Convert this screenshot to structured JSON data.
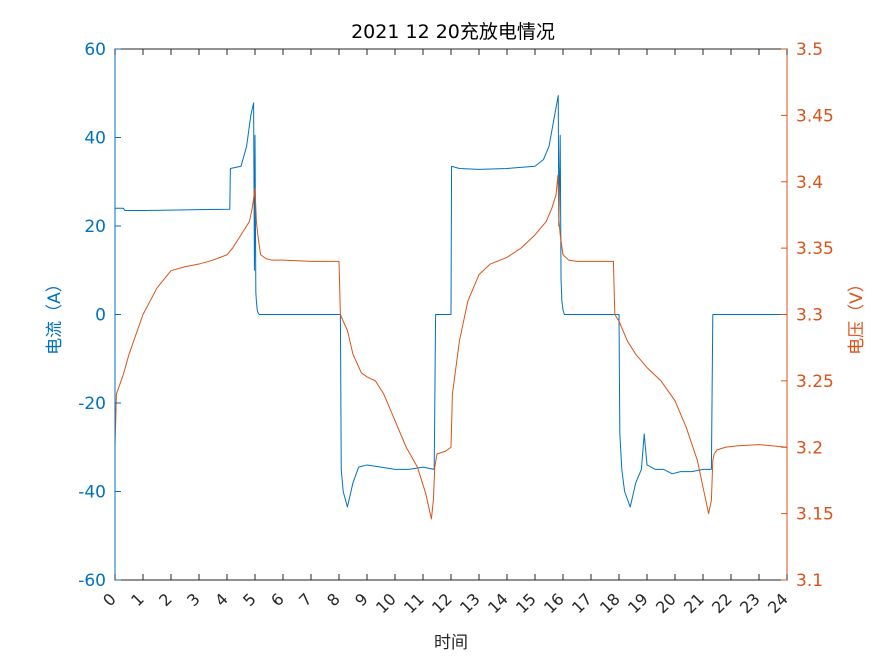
{
  "chart_data": {
    "type": "line",
    "title": "2021  12  20充放电情况",
    "xlabel": "时间",
    "ylabel_left": "电流（A）",
    "ylabel_right": "电压（V）",
    "xlim": [
      0,
      24
    ],
    "ylim_left": [
      -60,
      60
    ],
    "ylim_right": [
      3.1,
      3.5
    ],
    "x_ticks": [
      "0",
      "1",
      "2",
      "3",
      "4",
      "5",
      "6",
      "7",
      "8",
      "9",
      "10",
      "11",
      "12",
      "13",
      "14",
      "15",
      "16",
      "17",
      "18",
      "19",
      "20",
      "21",
      "22",
      "23",
      "24"
    ],
    "yleft_ticks": [
      "60",
      "40",
      "20",
      "0",
      "-20",
      "-40",
      "-60"
    ],
    "yright_ticks": [
      "3.5",
      "3.45",
      "3.4",
      "3.35",
      "3.3",
      "3.25",
      "3.2",
      "3.15",
      "3.1"
    ],
    "grid": false,
    "colors": {
      "current": "#0072BD",
      "voltage": "#D95319",
      "axis": "#262626"
    },
    "series": [
      {
        "axis": "left",
        "color": "#0072BD",
        "x": [
          0,
          0.3,
          0.35,
          1,
          2,
          3,
          4.1,
          4.12,
          4.5,
          4.7,
          4.85,
          4.95,
          4.98,
          5.0,
          5.03,
          5.05,
          5.08,
          5.1,
          5.15,
          5.3,
          7,
          8.05,
          8.08,
          8.15,
          8.3,
          8.5,
          8.7,
          9.0,
          9.5,
          10.0,
          10.5,
          11.0,
          11.4,
          11.45,
          11.5,
          12.0,
          12.02,
          12.3,
          13,
          14,
          15,
          15.3,
          15.5,
          15.7,
          15.83,
          15.85,
          15.9,
          15.93,
          15.96,
          16.0,
          16.05,
          16.2,
          17.5,
          18.0,
          18.03,
          18.1,
          18.2,
          18.4,
          18.6,
          18.8,
          18.9,
          19.0,
          19.3,
          19.6,
          19.9,
          20.2,
          20.6,
          21.0,
          21.3,
          21.35,
          21.4,
          21.5,
          24
        ],
        "y": [
          24,
          24,
          23.5,
          23.5,
          23.6,
          23.7,
          23.8,
          33.0,
          33.5,
          38,
          45,
          47.8,
          10,
          40.5,
          5,
          3,
          1,
          0.5,
          0,
          0,
          0,
          0,
          -35,
          -40,
          -43.5,
          -38,
          -34.5,
          -34,
          -34.5,
          -35,
          -35,
          -34.5,
          -35,
          0,
          0,
          0,
          33.5,
          33,
          32.8,
          33,
          33.5,
          35,
          38,
          45,
          49.5,
          20,
          40.5,
          8,
          3,
          1,
          0,
          0,
          0,
          0,
          -27,
          -35,
          -40,
          -43.5,
          -38,
          -35,
          -27,
          -34,
          -35,
          -35,
          -36,
          -35.5,
          -35.5,
          -35,
          -35,
          0,
          0,
          0,
          0
        ]
      },
      {
        "axis": "right",
        "color": "#D95319",
        "x": [
          0,
          0.05,
          0.3,
          0.5,
          1,
          1.5,
          2,
          2.5,
          3,
          3.5,
          4,
          4.2,
          4.5,
          4.8,
          4.9,
          5.0,
          5.05,
          5.1,
          5.2,
          5.4,
          5.6,
          6,
          7,
          7.6,
          7.7,
          8.0,
          8.05,
          8.15,
          8.3,
          8.5,
          8.8,
          9.0,
          9.3,
          9.6,
          10.0,
          10.4,
          10.8,
          11.1,
          11.3,
          11.37,
          11.42,
          11.5,
          11.8,
          12.0,
          12.05,
          12.3,
          12.6,
          13.0,
          13.4,
          14.0,
          14.5,
          15.0,
          15.4,
          15.6,
          15.75,
          15.82,
          15.86,
          15.9,
          16.0,
          16.2,
          16.5,
          16.8,
          17.5,
          17.8,
          17.85,
          18.0,
          18.1,
          18.3,
          18.6,
          18.8,
          19.0,
          19.5,
          20.0,
          20.4,
          20.8,
          21.0,
          21.2,
          21.3,
          21.35,
          21.4,
          21.5,
          21.8,
          22.2,
          23.0,
          24
        ],
        "y": [
          3.2,
          3.24,
          3.255,
          3.27,
          3.3,
          3.32,
          3.333,
          3.336,
          3.338,
          3.341,
          3.345,
          3.35,
          3.36,
          3.37,
          3.38,
          3.395,
          3.37,
          3.36,
          3.345,
          3.342,
          3.341,
          3.341,
          3.34,
          3.34,
          3.34,
          3.34,
          3.3,
          3.295,
          3.288,
          3.27,
          3.256,
          3.253,
          3.25,
          3.24,
          3.22,
          3.2,
          3.185,
          3.165,
          3.146,
          3.16,
          3.185,
          3.195,
          3.197,
          3.2,
          3.24,
          3.28,
          3.31,
          3.33,
          3.338,
          3.343,
          3.35,
          3.36,
          3.37,
          3.38,
          3.39,
          3.405,
          3.37,
          3.36,
          3.345,
          3.341,
          3.34,
          3.34,
          3.34,
          3.34,
          3.3,
          3.295,
          3.29,
          3.28,
          3.27,
          3.265,
          3.26,
          3.25,
          3.235,
          3.215,
          3.19,
          3.17,
          3.15,
          3.16,
          3.19,
          3.195,
          3.198,
          3.2,
          3.201,
          3.202,
          3.2
        ]
      }
    ]
  }
}
